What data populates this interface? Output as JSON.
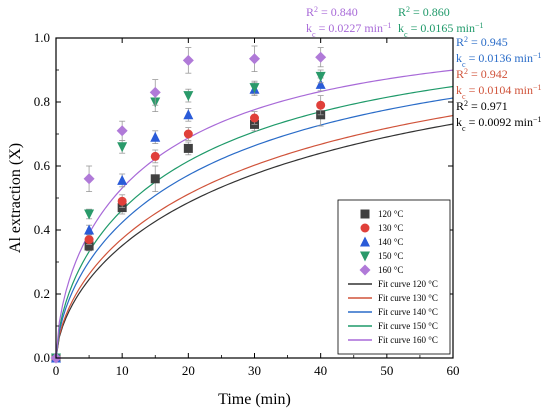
{
  "chart_data": {
    "type": "scatter",
    "xlabel": "Time (min)",
    "ylabel": "Al extraction (X)",
    "xlim": [
      0,
      60
    ],
    "ylim": [
      0,
      1.0
    ],
    "x_ticks": [
      "0",
      "10",
      "20",
      "30",
      "40",
      "50",
      "60"
    ],
    "y_ticks": [
      "0.0",
      "0.2",
      "0.4",
      "0.6",
      "0.8",
      "1.0"
    ],
    "grid": false,
    "legend_position": "bottom-right",
    "series": [
      {
        "name": "120 °C",
        "marker": "square",
        "color": "#404040",
        "x": [
          0,
          5,
          10,
          15,
          20,
          30,
          40
        ],
        "y": [
          0.0,
          0.35,
          0.47,
          0.56,
          0.655,
          0.73,
          0.76
        ],
        "error": [
          0,
          0.015,
          0.02,
          0.04,
          0.02,
          0.02,
          0.035
        ],
        "fit_label": "Fit curve 120 °C",
        "fit_color": "#333333",
        "kc": 0.0092,
        "r2_text": "R",
        "r2_value": " = 0.971",
        "kc_text": "k",
        "kc_value": " = 0.0092 min",
        "ann_color": "#000000"
      },
      {
        "name": "130 °C",
        "marker": "circle",
        "color": "#e0403a",
        "x": [
          0,
          5,
          10,
          15,
          20,
          30,
          40
        ],
        "y": [
          0.0,
          0.37,
          0.49,
          0.63,
          0.7,
          0.75,
          0.79
        ],
        "error": [
          0,
          0.015,
          0.02,
          0.02,
          0.02,
          0.02,
          0.03
        ],
        "fit_label": "Fit curve 130 °C",
        "fit_color": "#d0533a",
        "kc": 0.0104,
        "r2_text": "R",
        "r2_value": " = 0.942",
        "kc_text": "k",
        "kc_value": " = 0.0104 min",
        "ann_color": "#d0533a"
      },
      {
        "name": "140 °C",
        "marker": "triangle",
        "color": "#2a5bd8",
        "x": [
          0,
          5,
          10,
          15,
          20,
          30,
          40
        ],
        "y": [
          0.0,
          0.4,
          0.555,
          0.69,
          0.76,
          0.84,
          0.855
        ],
        "error": [
          0,
          0.015,
          0.02,
          0.02,
          0.02,
          0.02,
          0.02
        ],
        "fit_label": "Fit curve 140 °C",
        "fit_color": "#2a6cc8",
        "kc": 0.0136,
        "r2_text": "R",
        "r2_value": " = 0.945",
        "kc_text": "k",
        "kc_value": " = 0.0136 min",
        "ann_color": "#2a6cc8"
      },
      {
        "name": "150 °C",
        "marker": "triangle-down",
        "color": "#2a9a6a",
        "x": [
          0,
          5,
          10,
          15,
          20,
          30,
          40
        ],
        "y": [
          0.0,
          0.45,
          0.66,
          0.8,
          0.82,
          0.845,
          0.88
        ],
        "error": [
          0,
          0.015,
          0.02,
          0.03,
          0.02,
          0.02,
          0.02
        ],
        "fit_label": "Fit curve 150 °C",
        "fit_color": "#1f9a6a",
        "kc": 0.0165,
        "r2_text": "R",
        "r2_value": " = 0.860",
        "kc_text": "k",
        "kc_value": " = 0.0165 min",
        "ann_color": "#1f9a6a"
      },
      {
        "name": "160 °C",
        "marker": "diamond",
        "color": "#b07ad8",
        "x": [
          0,
          5,
          10,
          15,
          20,
          30,
          40
        ],
        "y": [
          0.0,
          0.56,
          0.71,
          0.83,
          0.93,
          0.935,
          0.94
        ],
        "error": [
          0,
          0.04,
          0.03,
          0.04,
          0.04,
          0.04,
          0.03
        ],
        "fit_label": "Fit curve 160 °C",
        "fit_color": "#a86ad8",
        "kc": 0.0227,
        "r2_text": "R",
        "r2_value": " = 0.840",
        "kc_text": "k",
        "kc_value": " = 0.0227 min",
        "ann_color": "#a86ad8"
      }
    ]
  }
}
